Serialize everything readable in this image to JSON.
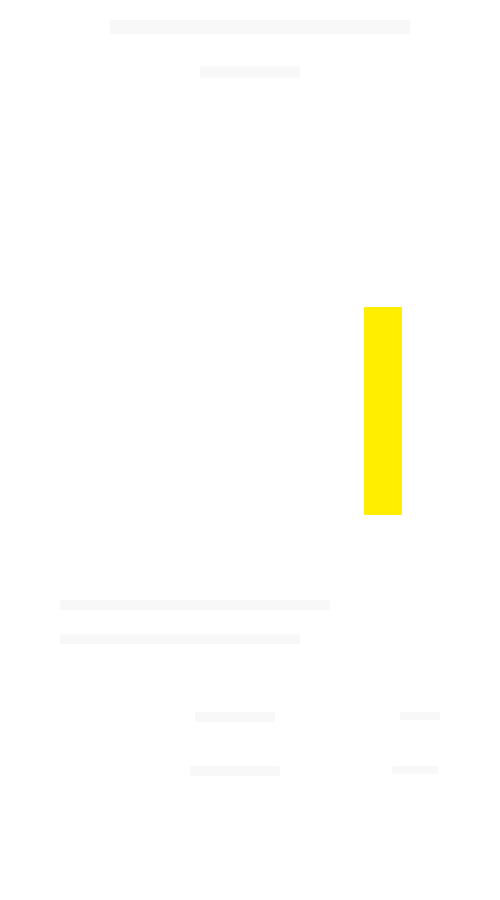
{
  "colors": {
    "background": "#ffffff",
    "indicator": "#ffee00",
    "faint_trace": "#f8f8f8"
  },
  "indicator": {
    "shape": "vertical-bar"
  }
}
